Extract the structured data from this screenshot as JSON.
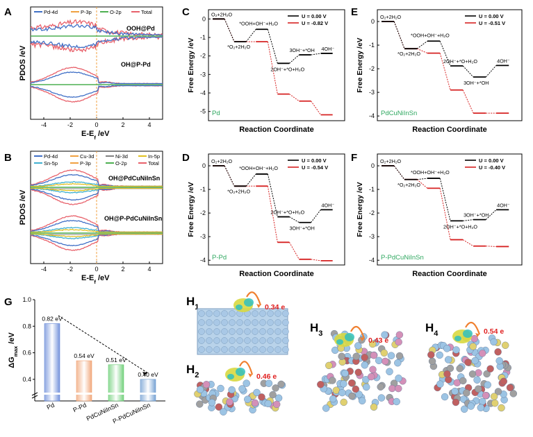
{
  "chart_data": [
    {
      "panel": "A",
      "type": "line",
      "title": "PDOS",
      "ylabel": "PDOS /eV",
      "xlabel": "E-E",
      "xlabel_sub": "f",
      "xlabel_unit": " /eV",
      "xlim": [
        -5,
        5
      ],
      "xticks": [
        -4,
        -2,
        0,
        2,
        4
      ],
      "legend": [
        {
          "name": "Pd-4d",
          "color": "#3f6fc6"
        },
        {
          "name": "P-3p",
          "color": "#f0a040"
        },
        {
          "name": "O-2p",
          "color": "#4caf50"
        },
        {
          "name": "Total",
          "color": "#e8606a"
        }
      ],
      "annotations": [
        "OOH@Pd",
        "OH@P-Pd"
      ]
    },
    {
      "panel": "B",
      "type": "line",
      "title": "PDOS",
      "ylabel": "PDOS /eV",
      "xlabel": "E-E",
      "xlabel_sub": "f",
      "xlabel_unit": " /eV",
      "xlim": [
        -5,
        5
      ],
      "xticks": [
        -4,
        -2,
        0,
        2,
        4
      ],
      "legend": [
        {
          "name": "Pd-4d",
          "color": "#3f6fc6"
        },
        {
          "name": "Cu-3d",
          "color": "#f0a040"
        },
        {
          "name": "Ni-3d",
          "color": "#808080"
        },
        {
          "name": "In-5p",
          "color": "#e0c020"
        },
        {
          "name": "Sn-5p",
          "color": "#40b0d0"
        },
        {
          "name": "P-3p",
          "color": "#f0a040"
        },
        {
          "name": "O-2p",
          "color": "#4caf50"
        },
        {
          "name": "Total",
          "color": "#e8606a"
        }
      ],
      "annotations": [
        "OH@PdCuNiInSn",
        "OH@P-PdCuNiInSn"
      ]
    },
    {
      "panel": "C",
      "type": "line",
      "catalyst": "Pd",
      "xlabel": "Reaction Coordinate",
      "ylabel": "Free Energy /eV",
      "ylim": [
        -5.5,
        0.5
      ],
      "yticks": [
        0,
        -1,
        -2,
        -3,
        -4,
        -5
      ],
      "series": [
        {
          "name": "U =  0.00 V",
          "color": "#000000",
          "values": [
            0,
            -1.23,
            -0.56,
            -2.4,
            -1.94,
            -1.86
          ]
        },
        {
          "name": "U = -0.82 V",
          "color": "#d62020",
          "values": [
            0,
            -1.23,
            -1.23,
            -4.06,
            -4.44,
            -5.18
          ]
        }
      ],
      "labels": [
        "O₂+2H₂O",
        "*O₂+2H₂O",
        "*OOH+OH⁻+H₂O",
        "2OH⁻+*O+H₂O",
        "3OH⁻+*OH",
        "4OH⁻"
      ]
    },
    {
      "panel": "D",
      "type": "line",
      "catalyst": "P-Pd",
      "xlabel": "Reaction Coordinate",
      "ylabel": "Free Energy /eV",
      "ylim": [
        -4.2,
        0.5
      ],
      "yticks": [
        0,
        -1,
        -2,
        -3,
        -4
      ],
      "series": [
        {
          "name": "U =  0.00 V",
          "color": "#000000",
          "values": [
            0,
            -0.86,
            -0.35,
            -2.16,
            -2.4,
            -1.86
          ]
        },
        {
          "name": "U = -0.54 V",
          "color": "#d62020",
          "values": [
            0,
            -0.86,
            -0.86,
            -3.24,
            -3.96,
            -4.02
          ]
        }
      ],
      "labels": [
        "O₂+2H₂O",
        "*O₂+2H₂O",
        "*OOH+OH⁻+H₂O",
        "2OH⁻+*O+H₂O",
        "3OH⁻+*OH",
        "4OH⁻"
      ]
    },
    {
      "panel": "E",
      "type": "line",
      "catalyst": "PdCuNiInSn",
      "xlabel": "Reaction Coordinate",
      "ylabel": "Free Energy /eV",
      "ylim": [
        -4.2,
        0.5
      ],
      "yticks": [
        0,
        -1,
        -2,
        -3,
        -4
      ],
      "series": [
        {
          "name": "U =  0.00 V",
          "color": "#000000",
          "values": [
            0,
            -1.15,
            -0.83,
            -1.88,
            -2.35,
            -1.86
          ]
        },
        {
          "name": "U = -0.51 V",
          "color": "#d62020",
          "values": [
            0,
            -1.15,
            -1.34,
            -2.9,
            -3.88,
            -3.88
          ]
        }
      ],
      "labels": [
        "O₂+2H₂O",
        "*O₂+2H₂O",
        "*OOH+OH⁻+H₂O",
        "2OH⁻+*O+H₂O",
        "3OH⁻+*OH",
        "4OH⁻"
      ]
    },
    {
      "panel": "F",
      "type": "line",
      "catalyst": "P-PdCuNiInSn",
      "xlabel": "Reaction Coordinate",
      "ylabel": "Free Energy /eV",
      "ylim": [
        -4.2,
        0.5
      ],
      "yticks": [
        0,
        -1,
        -2,
        -3,
        -4
      ],
      "series": [
        {
          "name": "U =  0.00 V",
          "color": "#000000",
          "values": [
            0,
            -0.58,
            -0.53,
            -2.33,
            -2.28,
            -1.86
          ]
        },
        {
          "name": "U = -0.40 V",
          "color": "#d62020",
          "values": [
            0,
            -0.58,
            -0.95,
            -3.13,
            -3.4,
            -3.42
          ]
        }
      ],
      "labels": [
        "O₂+2H₂O",
        "*O₂+2H₂O",
        "*OOH+OH⁻+H₂O",
        "2OH⁻+*O+H₂O",
        "3OH⁻+*OH",
        "4OH⁻"
      ]
    },
    {
      "panel": "G",
      "type": "bar",
      "ylabel": "ΔG",
      "ylabel_sub": "max",
      "ylabel_unit": " /eV",
      "ylim": [
        0.3,
        1.0
      ],
      "yticks": [
        0.4,
        0.6,
        0.8,
        1.0
      ],
      "categories": [
        "Pd",
        "P-Pd",
        "PdCuNiInSn",
        "P-PdCuNiInSn"
      ],
      "values": [
        0.82,
        0.54,
        0.51,
        0.4
      ],
      "value_labels": [
        "0.82 eV",
        "0.54 eV",
        "0.51 eV",
        "0.40 eV"
      ],
      "colors": [
        "#6688d8",
        "#f0a070",
        "#66cc70",
        "#6a9ad0"
      ]
    }
  ],
  "structures": [
    {
      "id": "H1",
      "label": "H",
      "sub": "1",
      "charge": "0.34 e"
    },
    {
      "id": "H2",
      "label": "H",
      "sub": "2",
      "charge": "0.46 e"
    },
    {
      "id": "H3",
      "label": "H",
      "sub": "3",
      "charge": "0.43 e"
    },
    {
      "id": "H4",
      "label": "H",
      "sub": "4",
      "charge": "0.54 e"
    }
  ]
}
